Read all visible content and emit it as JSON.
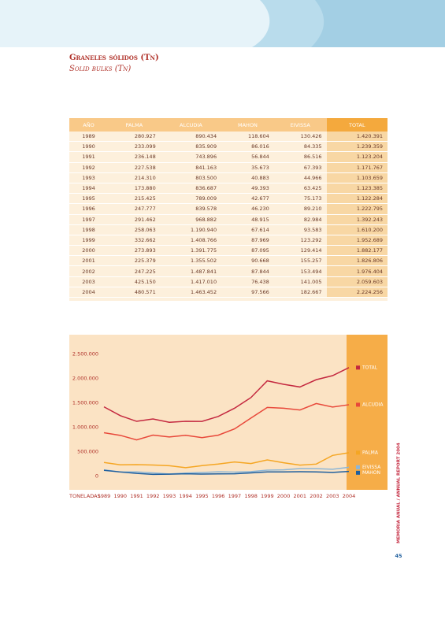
{
  "header": {
    "title": "Graneles sólidos (Tn)",
    "subtitle": "Solid bulks (Tn)"
  },
  "table": {
    "columns": [
      "AÑO",
      "PALMA",
      "ALCUDIA",
      "MAHON",
      "EIVISSA",
      "TOTAL"
    ],
    "rows": [
      [
        "1989",
        "280.927",
        "890.434",
        "118.604",
        "130.426",
        "1.420.391"
      ],
      [
        "1990",
        "233.099",
        "835.909",
        "86.016",
        "84.335",
        "1.239.359"
      ],
      [
        "1991",
        "236.148",
        "743.896",
        "56.844",
        "86.516",
        "1.123.204"
      ],
      [
        "1992",
        "227.538",
        "841.163",
        "35.673",
        "67.393",
        "1.171.767"
      ],
      [
        "1993",
        "214.310",
        "803.500",
        "40.883",
        "44.966",
        "1.103.659"
      ],
      [
        "1994",
        "173.880",
        "836.687",
        "49.393",
        "63.425",
        "1.123.385"
      ],
      [
        "1995",
        "215.425",
        "789.009",
        "42.677",
        "75.173",
        "1.122.284"
      ],
      [
        "1996",
        "247.777",
        "839.578",
        "46.230",
        "89.210",
        "1.222.795"
      ],
      [
        "1997",
        "291.462",
        "968.882",
        "48.915",
        "82.984",
        "1.392.243"
      ],
      [
        "1998",
        "258.063",
        "1.190.940",
        "67.614",
        "93.583",
        "1.610.200"
      ],
      [
        "1999",
        "332.662",
        "1.408.766",
        "87.969",
        "123.292",
        "1.952.689"
      ],
      [
        "2000",
        "273.893",
        "1.391.775",
        "87.095",
        "129.414",
        "1.882.177"
      ],
      [
        "2001",
        "225.379",
        "1.355.502",
        "90.668",
        "155.257",
        "1.826.806"
      ],
      [
        "2002",
        "247.225",
        "1.487.841",
        "87.844",
        "153.494",
        "1.976.404"
      ],
      [
        "2003",
        "425.150",
        "1.417.010",
        "76.438",
        "141.005",
        "2.059.603"
      ],
      [
        "2004",
        "480.571",
        "1.463.452",
        "97.566",
        "182.667",
        "2.224.256"
      ]
    ]
  },
  "chart_data": {
    "type": "line",
    "x_label": "TONELADAS",
    "categories": [
      "1989",
      "1990",
      "1991",
      "1992",
      "1993",
      "1994",
      "1995",
      "1996",
      "1997",
      "1998",
      "1999",
      "2000",
      "2001",
      "2002",
      "2003",
      "2004"
    ],
    "series": [
      {
        "name": "TOTAL",
        "color": "#c4283f",
        "values": [
          1420391,
          1239359,
          1123204,
          1171767,
          1103659,
          1123385,
          1122284,
          1222795,
          1392243,
          1610200,
          1952689,
          1882177,
          1826806,
          1976404,
          2059603,
          2224256
        ]
      },
      {
        "name": "ALCUDIA",
        "color": "#e8483a",
        "values": [
          890434,
          835909,
          743896,
          841163,
          803500,
          836687,
          789009,
          839578,
          968882,
          1190940,
          1408766,
          1391775,
          1355502,
          1487841,
          1417010,
          1463452
        ]
      },
      {
        "name": "PALMA",
        "color": "#f5a623",
        "values": [
          280927,
          233099,
          236148,
          227538,
          214310,
          173880,
          215425,
          247777,
          291462,
          258063,
          332662,
          273893,
          225379,
          247225,
          425150,
          480571
        ]
      },
      {
        "name": "EIVISSA",
        "color": "#8db6d6",
        "values": [
          130426,
          84335,
          86516,
          67393,
          44966,
          63425,
          75173,
          89210,
          82984,
          93583,
          123292,
          129414,
          155257,
          153494,
          141005,
          182667
        ]
      },
      {
        "name": "MAHON",
        "color": "#1f5f9e",
        "values": [
          118604,
          86016,
          56844,
          35673,
          40883,
          49393,
          42677,
          46230,
          48915,
          67614,
          87969,
          87095,
          90668,
          87844,
          76438,
          97566
        ]
      }
    ],
    "ylim": [
      -280000,
      2850000
    ],
    "yticks": [
      0,
      {
        "value": 500000,
        "label": "500.000"
      },
      {
        "value": 1000000,
        "label": "1.000.000"
      },
      {
        "value": 1500000,
        "label": "1.500.000"
      },
      {
        "value": 2000000,
        "label": "2.000.000"
      },
      {
        "value": 2500000,
        "label": "2.500.000"
      }
    ]
  },
  "footer": {
    "side_text": "MEMORIA ANUAL / ANNUAL REPORT 2004",
    "page": "45"
  }
}
